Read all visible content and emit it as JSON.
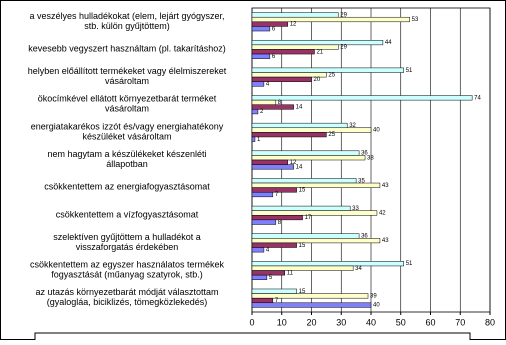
{
  "chart_data": {
    "type": "hbar",
    "categories": [
      [
        "a veszélyes hulladékokat (elem, lejárt gyógyszer,",
        "stb. külön gyűjtöttem)"
      ],
      [
        "kevesebb vegyszert használtam (pl. takarításhoz)"
      ],
      [
        "helyben előállított termékeket vagy élelmiszereket",
        "vásároltam"
      ],
      [
        "ökocímkével ellátott környezetbarát terméket",
        "vásároltam"
      ],
      [
        "energiatakarékos izzót és/vagy energiahatékony",
        "készüléket vásároltam"
      ],
      [
        "nem hagytam a készülékeket készenléti",
        "állapotban"
      ],
      [
        "csökkentettem az energiafogyasztásomat"
      ],
      [
        "csökkentettem a vízfogyasztásomat"
      ],
      [
        "szelektíven gyűjtöttem a hulladékot a",
        "visszaforgatás érdekében"
      ],
      [
        "csökkentettem az egyszer használatos termékek",
        "fogyasztását (műanyag szatyrok, stb.)"
      ],
      [
        "az utazás környezetbarát módját választottam",
        "(gyalogláa, biciklizés, tömegközlekedés)"
      ]
    ],
    "series": [
      {
        "color": "#ccffff",
        "values": [
          29,
          44,
          51,
          74,
          32,
          36,
          35,
          33,
          36,
          51,
          15
        ]
      },
      {
        "color": "#ffffcc",
        "values": [
          53,
          29,
          25,
          8,
          40,
          38,
          43,
          42,
          43,
          34,
          39
        ]
      },
      {
        "color": "#993366",
        "values": [
          12,
          21,
          20,
          14,
          25,
          12,
          15,
          17,
          15,
          11,
          7
        ]
      },
      {
        "color": "#8080ff",
        "values": [
          6,
          6,
          4,
          2,
          1,
          14,
          7,
          8,
          4,
          5,
          40
        ]
      }
    ],
    "xlim": [
      0,
      80
    ],
    "xticks": [
      0,
      10,
      20,
      30,
      40,
      50,
      60,
      70,
      80
    ],
    "grid": true
  }
}
